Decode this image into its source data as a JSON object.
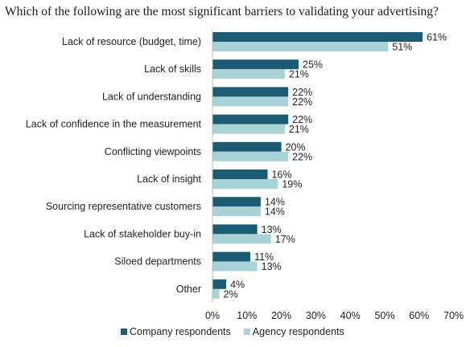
{
  "chart_data": {
    "type": "bar",
    "orientation": "horizontal",
    "title": "Which of the following are the most significant barriers to validating your advertising?",
    "categories": [
      "Lack of resource (budget, time)",
      "Lack of skills",
      "Lack of understanding",
      "Lack of confidence in the measurement",
      "Conflicting viewpoints",
      "Lack of insight",
      "Sourcing representative customers",
      "Lack of stakeholder buy-in",
      "Siloed departments",
      "Other"
    ],
    "series": [
      {
        "name": "Company respondents",
        "color": "#1b5c73",
        "values": [
          61,
          25,
          22,
          22,
          20,
          16,
          14,
          13,
          11,
          4
        ],
        "labels": [
          "61%",
          "25%",
          "22%",
          "22%",
          "20%",
          "16%",
          "14%",
          "13%",
          "11%",
          "4%"
        ]
      },
      {
        "name": "Agency respondents",
        "color": "#a8d3d6",
        "values": [
          51,
          21,
          22,
          21,
          22,
          19,
          14,
          17,
          13,
          2
        ],
        "labels": [
          "51%",
          "21%",
          "22%",
          "21%",
          "22%",
          "19%",
          "14%",
          "17%",
          "13%",
          "2%"
        ]
      }
    ],
    "xlim": [
      0,
      70
    ],
    "xticks": [
      "0%",
      "10%",
      "20%",
      "30%",
      "40%",
      "50%",
      "60%",
      "70%"
    ],
    "grid": false,
    "legend_position": "bottom"
  }
}
